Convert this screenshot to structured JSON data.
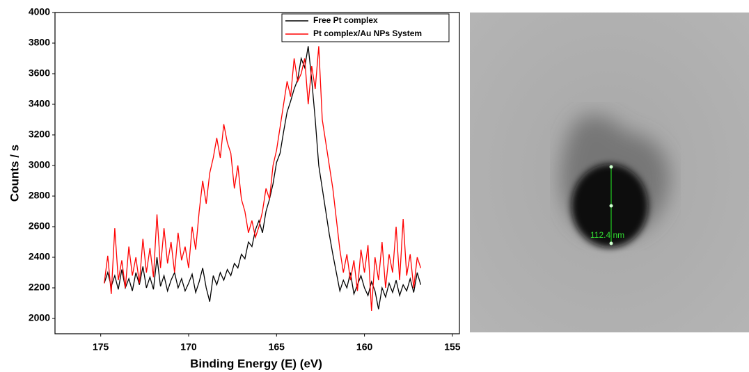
{
  "chart_data": {
    "type": "line",
    "xlabel": "Binding Energy (E) (eV)",
    "ylabel": "Counts / s",
    "x": [
      174.8,
      174.6,
      174.4,
      174.2,
      174.0,
      173.8,
      173.6,
      173.4,
      173.2,
      173.0,
      172.8,
      172.6,
      172.4,
      172.2,
      172.0,
      171.8,
      171.6,
      171.4,
      171.2,
      171.0,
      170.8,
      170.6,
      170.4,
      170.2,
      170.0,
      169.8,
      169.6,
      169.4,
      169.2,
      169.0,
      168.8,
      168.6,
      168.4,
      168.2,
      168.0,
      167.8,
      167.6,
      167.4,
      167.2,
      167.0,
      166.8,
      166.6,
      166.4,
      166.2,
      166.0,
      165.8,
      165.6,
      165.4,
      165.2,
      165.0,
      164.8,
      164.6,
      164.4,
      164.2,
      164.0,
      163.8,
      163.6,
      163.4,
      163.2,
      163.0,
      162.8,
      162.6,
      162.4,
      162.2,
      162.0,
      161.8,
      161.6,
      161.4,
      161.2,
      161.0,
      160.8,
      160.6,
      160.4,
      160.2,
      160.0,
      159.8,
      159.6,
      159.4,
      159.2,
      159.0,
      158.8,
      158.6,
      158.4,
      158.2,
      158.0,
      157.8,
      157.6,
      157.4,
      157.2,
      157.0,
      156.8
    ],
    "series": [
      {
        "name": "Free Pt complex",
        "color": "#000000",
        "values": [
          2230,
          2300,
          2210,
          2280,
          2190,
          2320,
          2200,
          2260,
          2180,
          2300,
          2220,
          2340,
          2200,
          2270,
          2190,
          2400,
          2210,
          2280,
          2180,
          2250,
          2300,
          2200,
          2260,
          2180,
          2230,
          2290,
          2170,
          2240,
          2330,
          2200,
          2110,
          2280,
          2220,
          2300,
          2250,
          2320,
          2280,
          2360,
          2330,
          2420,
          2390,
          2500,
          2470,
          2580,
          2640,
          2560,
          2700,
          2780,
          2880,
          3020,
          3080,
          3220,
          3350,
          3420,
          3500,
          3560,
          3700,
          3640,
          3780,
          3560,
          3300,
          3000,
          2850,
          2700,
          2550,
          2420,
          2300,
          2180,
          2250,
          2200,
          2300,
          2160,
          2220,
          2280,
          2200,
          2150,
          2240,
          2180,
          2060,
          2200,
          2140,
          2230,
          2170,
          2250,
          2150,
          2220,
          2180,
          2260,
          2170,
          2300,
          2220
        ]
      },
      {
        "name": "Pt complex/Au NPs System",
        "color": "#ff0000",
        "values": [
          2230,
          2410,
          2160,
          2590,
          2250,
          2380,
          2200,
          2470,
          2280,
          2400,
          2230,
          2520,
          2300,
          2460,
          2270,
          2680,
          2330,
          2590,
          2360,
          2500,
          2300,
          2560,
          2380,
          2470,
          2330,
          2600,
          2450,
          2700,
          2900,
          2750,
          2950,
          3050,
          3180,
          3050,
          3270,
          3150,
          3080,
          2850,
          3000,
          2780,
          2700,
          2560,
          2640,
          2530,
          2600,
          2700,
          2850,
          2780,
          3000,
          3100,
          3250,
          3400,
          3550,
          3450,
          3700,
          3550,
          3600,
          3700,
          3400,
          3650,
          3500,
          3780,
          3300,
          3150,
          3000,
          2850,
          2650,
          2450,
          2300,
          2420,
          2250,
          2380,
          2180,
          2450,
          2300,
          2480,
          2050,
          2400,
          2250,
          2500,
          2200,
          2420,
          2300,
          2600,
          2250,
          2650,
          2280,
          2420,
          2200,
          2400,
          2330
        ]
      }
    ],
    "xlim": [
      177.6,
      154.6
    ],
    "xticks": [
      175,
      170,
      165,
      160,
      155
    ],
    "ylim": [
      1900,
      4000
    ],
    "yticks": [
      2000,
      2200,
      2400,
      2600,
      2800,
      3000,
      3200,
      3400,
      3600,
      3800,
      4000
    ],
    "legend": "upper right"
  },
  "micrograph": {
    "scale_label": "112.4 nm"
  }
}
